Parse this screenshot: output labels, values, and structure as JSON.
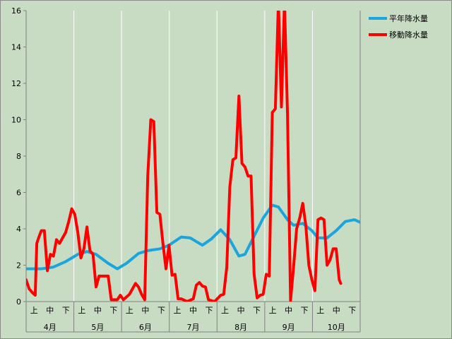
{
  "chart_data": {
    "type": "line",
    "ylim": [
      0,
      16
    ],
    "y_ticks": [
      "0",
      "2",
      "4",
      "6",
      "8",
      "10",
      "12",
      "14",
      "16"
    ],
    "grid": "vertical lines only at month boundaries",
    "legend_position": "top-right",
    "dekad_labels": [
      "上",
      "中",
      "下"
    ],
    "months": [
      "4月",
      "5月",
      "6月",
      "7月",
      "8月",
      "9月",
      "10月"
    ],
    "colors": {
      "normal": "#1aa6dd",
      "moving": "#ff0000",
      "background": "#c8dcc4",
      "grid": "#ffffff"
    },
    "series": [
      {
        "name": "平年降水量",
        "color": "#1aa6dd",
        "points": [
          [
            0,
            1.8
          ],
          [
            5,
            1.8
          ],
          [
            9,
            1.9
          ],
          [
            13,
            2.2
          ],
          [
            17,
            2.6
          ],
          [
            20,
            2.75
          ],
          [
            23,
            2.6
          ],
          [
            27,
            2.1
          ],
          [
            30,
            1.8
          ],
          [
            33,
            2.1
          ],
          [
            37,
            2.65
          ],
          [
            40,
            2.8
          ],
          [
            44,
            2.9
          ],
          [
            47,
            3.1
          ],
          [
            51,
            3.55
          ],
          [
            54,
            3.5
          ],
          [
            58,
            3.1
          ],
          [
            61,
            3.45
          ],
          [
            64,
            3.95
          ],
          [
            67,
            3.4
          ],
          [
            70,
            2.5
          ],
          [
            72,
            2.6
          ],
          [
            75,
            3.6
          ],
          [
            78,
            4.6
          ],
          [
            81,
            5.3
          ],
          [
            83,
            5.2
          ],
          [
            86,
            4.5
          ],
          [
            88,
            4.2
          ],
          [
            91,
            4.3
          ],
          [
            94,
            3.9
          ],
          [
            96,
            3.5
          ],
          [
            99,
            3.5
          ],
          [
            102,
            3.9
          ],
          [
            105,
            4.4
          ],
          [
            108,
            4.5
          ],
          [
            110,
            4.35
          ]
        ]
      },
      {
        "name": "移動降水量",
        "color": "#ff0000",
        "points": [
          [
            0,
            1.2
          ],
          [
            1,
            0.7
          ],
          [
            2,
            0.5
          ],
          [
            3,
            0.35
          ],
          [
            3.5,
            3.2
          ],
          [
            4,
            3.45
          ],
          [
            5,
            3.9
          ],
          [
            6,
            3.9
          ],
          [
            7,
            1.7
          ],
          [
            8,
            2.6
          ],
          [
            9,
            2.5
          ],
          [
            10,
            3.4
          ],
          [
            11,
            3.2
          ],
          [
            12,
            3.5
          ],
          [
            13,
            3.8
          ],
          [
            14,
            4.4
          ],
          [
            15,
            5.1
          ],
          [
            16,
            4.8
          ],
          [
            17,
            3.8
          ],
          [
            18,
            2.4
          ],
          [
            19,
            2.9
          ],
          [
            20,
            4.1
          ],
          [
            21,
            2.8
          ],
          [
            22,
            2.6
          ],
          [
            23,
            0.8
          ],
          [
            24,
            1.4
          ],
          [
            27,
            1.4
          ],
          [
            28,
            0.1
          ],
          [
            30,
            0.1
          ],
          [
            31,
            0.35
          ],
          [
            32,
            0.1
          ],
          [
            34,
            0.4
          ],
          [
            36,
            1.0
          ],
          [
            37,
            0.8
          ],
          [
            38,
            0.4
          ],
          [
            39,
            0.1
          ],
          [
            40,
            6.9
          ],
          [
            41,
            10.0
          ],
          [
            42,
            9.9
          ],
          [
            43,
            4.9
          ],
          [
            44,
            4.8
          ],
          [
            45,
            3.2
          ],
          [
            46,
            1.8
          ],
          [
            47,
            3.1
          ],
          [
            48,
            1.45
          ],
          [
            49,
            1.5
          ],
          [
            50,
            0.15
          ],
          [
            51,
            0.15
          ],
          [
            53,
            0.0
          ],
          [
            55,
            0.15
          ],
          [
            56,
            0.9
          ],
          [
            57,
            1.05
          ],
          [
            58,
            0.85
          ],
          [
            59,
            0.8
          ],
          [
            60,
            0.1
          ],
          [
            62,
            0.0
          ],
          [
            64,
            0.35
          ],
          [
            65,
            0.4
          ],
          [
            66,
            1.9
          ],
          [
            67,
            6.3
          ],
          [
            68,
            7.8
          ],
          [
            69,
            7.9
          ],
          [
            70,
            11.3
          ],
          [
            71,
            7.6
          ],
          [
            72,
            7.4
          ],
          [
            73,
            6.9
          ],
          [
            74,
            6.9
          ],
          [
            75,
            1.5
          ],
          [
            76,
            0.2
          ],
          [
            77,
            0.35
          ],
          [
            78,
            0.4
          ],
          [
            79,
            1.5
          ],
          [
            80,
            1.4
          ],
          [
            81,
            10.4
          ],
          [
            82,
            10.6
          ],
          [
            83,
            16.5
          ],
          [
            84,
            10.7
          ],
          [
            85,
            16.5
          ],
          [
            86,
            10.3
          ],
          [
            87,
            0.05
          ],
          [
            88,
            1.9
          ],
          [
            89,
            4.0
          ],
          [
            90,
            4.6
          ],
          [
            91,
            5.4
          ],
          [
            92,
            4.2
          ],
          [
            93,
            2.0
          ],
          [
            94,
            1.2
          ],
          [
            95,
            0.6
          ],
          [
            96,
            4.5
          ],
          [
            97,
            4.6
          ],
          [
            98,
            4.5
          ],
          [
            99,
            2.0
          ],
          [
            100,
            2.3
          ],
          [
            101,
            2.9
          ],
          [
            102,
            2.9
          ],
          [
            103,
            1.2
          ],
          [
            103.5,
            1.0
          ]
        ]
      }
    ]
  }
}
